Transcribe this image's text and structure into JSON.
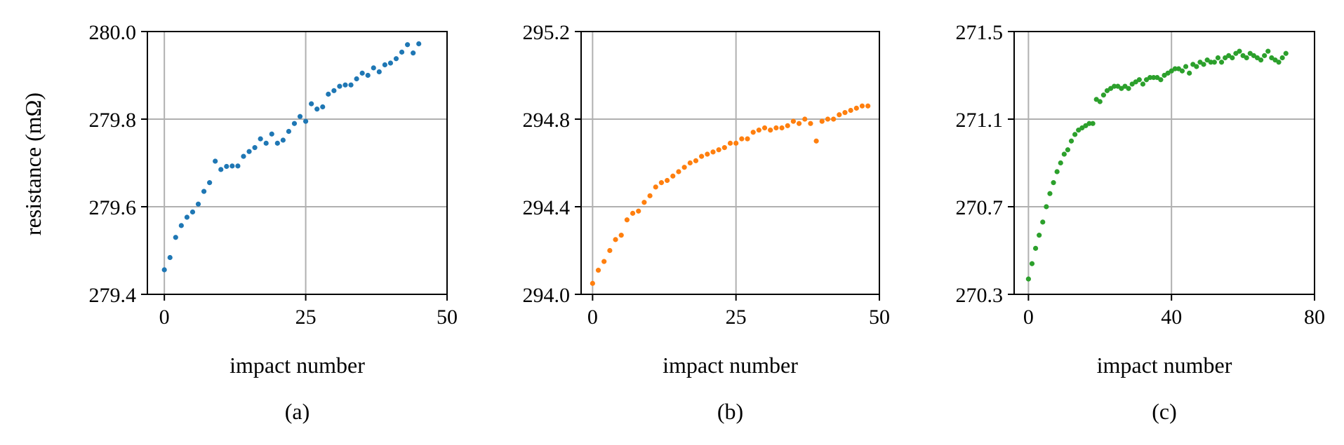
{
  "ylabel": "resistance (mΩ)",
  "chart_data": [
    {
      "type": "scatter",
      "caption": "(a)",
      "xlabel": "impact number",
      "ylabel": "resistance (mΩ)",
      "xlim": [
        -3,
        50
      ],
      "ylim": [
        279.4,
        280.0
      ],
      "xticks": [
        0,
        25,
        50
      ],
      "xtick_labels": [
        "0",
        "25",
        "50"
      ],
      "yticks": [
        279.4,
        279.6,
        279.8,
        280.0
      ],
      "ytick_labels": [
        "279.4",
        "279.6",
        "279.8",
        "280.0"
      ],
      "grid": true,
      "color": "#1f77b4",
      "x": [
        0,
        1,
        2,
        3,
        4,
        5,
        6,
        7,
        8,
        9,
        10,
        11,
        12,
        13,
        14,
        15,
        16,
        17,
        18,
        19,
        20,
        21,
        22,
        23,
        24,
        25,
        26,
        27,
        28,
        29,
        30,
        31,
        32,
        33,
        34,
        35,
        36,
        37,
        38,
        39,
        40,
        41,
        42,
        43,
        44,
        45
      ],
      "y": [
        279.456,
        279.484,
        279.53,
        279.557,
        279.576,
        279.588,
        279.606,
        279.635,
        279.655,
        279.704,
        279.685,
        279.692,
        279.693,
        279.693,
        279.715,
        279.726,
        279.735,
        279.755,
        279.745,
        279.766,
        279.745,
        279.752,
        279.772,
        279.79,
        279.806,
        279.795,
        279.835,
        279.823,
        279.828,
        279.857,
        279.865,
        279.875,
        279.878,
        279.878,
        279.892,
        279.905,
        279.9,
        279.917,
        279.908,
        279.924,
        279.928,
        279.938,
        279.953,
        279.97,
        279.951,
        279.972
      ]
    },
    {
      "type": "scatter",
      "caption": "(b)",
      "xlabel": "impact number",
      "xlim": [
        -2,
        50
      ],
      "ylim": [
        294.0,
        295.2
      ],
      "xticks": [
        0,
        25,
        50
      ],
      "xtick_labels": [
        "0",
        "25",
        "50"
      ],
      "yticks": [
        294.0,
        294.4,
        294.8,
        295.2
      ],
      "ytick_labels": [
        "294.0",
        "294.4",
        "294.8",
        "295.2"
      ],
      "grid": true,
      "color": "#ff7f0e",
      "x": [
        0,
        1,
        2,
        3,
        4,
        5,
        6,
        7,
        8,
        9,
        10,
        11,
        12,
        13,
        14,
        15,
        16,
        17,
        18,
        19,
        20,
        21,
        22,
        23,
        24,
        25,
        26,
        27,
        28,
        29,
        30,
        31,
        32,
        33,
        34,
        35,
        36,
        37,
        38,
        39,
        40,
        41,
        42,
        43,
        44,
        45,
        46,
        47,
        48
      ],
      "y": [
        294.05,
        294.11,
        294.15,
        294.2,
        294.25,
        294.27,
        294.34,
        294.37,
        294.38,
        294.42,
        294.45,
        294.49,
        294.51,
        294.52,
        294.54,
        294.56,
        294.58,
        294.6,
        294.61,
        294.63,
        294.64,
        294.65,
        294.66,
        294.67,
        294.69,
        294.69,
        294.71,
        294.71,
        294.74,
        294.75,
        294.76,
        294.75,
        294.76,
        294.76,
        294.77,
        294.79,
        294.78,
        294.8,
        294.78,
        294.7,
        294.79,
        294.8,
        294.8,
        294.82,
        294.83,
        294.84,
        294.85,
        294.86,
        294.86
      ]
    },
    {
      "type": "scatter",
      "caption": "(c)",
      "xlabel": "impact number",
      "xlim": [
        -4,
        80
      ],
      "ylim": [
        270.3,
        271.5
      ],
      "xticks": [
        0,
        40,
        80
      ],
      "xtick_labels": [
        "0",
        "40",
        "80"
      ],
      "yticks": [
        270.3,
        270.7,
        271.1,
        271.5
      ],
      "ytick_labels": [
        "270.3",
        "270.7",
        "271.1",
        "271.5"
      ],
      "grid": true,
      "color": "#2ca02c",
      "x": [
        0,
        1,
        2,
        3,
        4,
        5,
        6,
        7,
        8,
        9,
        10,
        11,
        12,
        13,
        14,
        15,
        16,
        17,
        18,
        19,
        20,
        21,
        22,
        23,
        24,
        25,
        26,
        27,
        28,
        29,
        30,
        31,
        32,
        33,
        34,
        35,
        36,
        37,
        38,
        39,
        40,
        41,
        42,
        43,
        44,
        45,
        46,
        47,
        48,
        49,
        50,
        51,
        52,
        53,
        54,
        55,
        56,
        57,
        58,
        59,
        60,
        61,
        62,
        63,
        64,
        65,
        66,
        67,
        68,
        69,
        70,
        71,
        72
      ],
      "y": [
        270.37,
        270.44,
        270.51,
        270.57,
        270.63,
        270.7,
        270.76,
        270.81,
        270.86,
        270.9,
        270.94,
        270.96,
        271.0,
        271.03,
        271.05,
        271.06,
        271.07,
        271.08,
        271.08,
        271.19,
        271.18,
        271.21,
        271.23,
        271.24,
        271.25,
        271.25,
        271.24,
        271.25,
        271.24,
        271.26,
        271.27,
        271.28,
        271.26,
        271.28,
        271.29,
        271.29,
        271.29,
        271.28,
        271.3,
        271.31,
        271.32,
        271.33,
        271.33,
        271.32,
        271.34,
        271.31,
        271.35,
        271.34,
        271.36,
        271.35,
        271.37,
        271.36,
        271.36,
        271.38,
        271.36,
        271.38,
        271.39,
        271.38,
        271.4,
        271.41,
        271.39,
        271.38,
        271.4,
        271.39,
        271.38,
        271.37,
        271.39,
        271.41,
        271.38,
        271.37,
        271.36,
        271.38,
        271.4
      ]
    }
  ]
}
